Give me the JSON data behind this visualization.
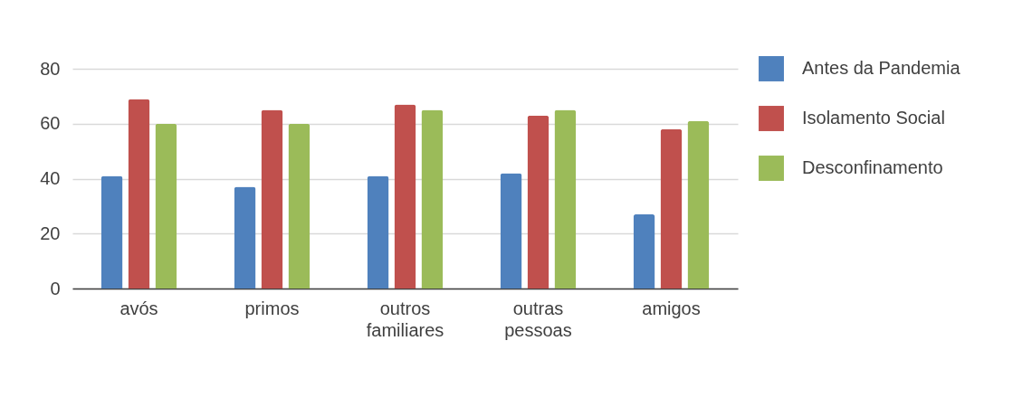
{
  "chart_data": {
    "type": "bar",
    "categories": [
      "avós",
      "primos",
      "outros familiares",
      "outras pessoas",
      "amigos"
    ],
    "series": [
      {
        "name": "Antes da Pandemia",
        "color": "#4f81bd",
        "values": [
          41,
          37,
          41,
          42,
          27
        ]
      },
      {
        "name": "Isolamento Social",
        "color": "#c0504d",
        "values": [
          69,
          65,
          67,
          63,
          58
        ]
      },
      {
        "name": "Desconfinamento",
        "color": "#9bbb59",
        "values": [
          60,
          60,
          65,
          65,
          61
        ]
      }
    ],
    "ylim": [
      0,
      80
    ],
    "yticks": [
      0,
      20,
      40,
      60,
      80
    ],
    "grid": "y",
    "legend": "top right"
  }
}
